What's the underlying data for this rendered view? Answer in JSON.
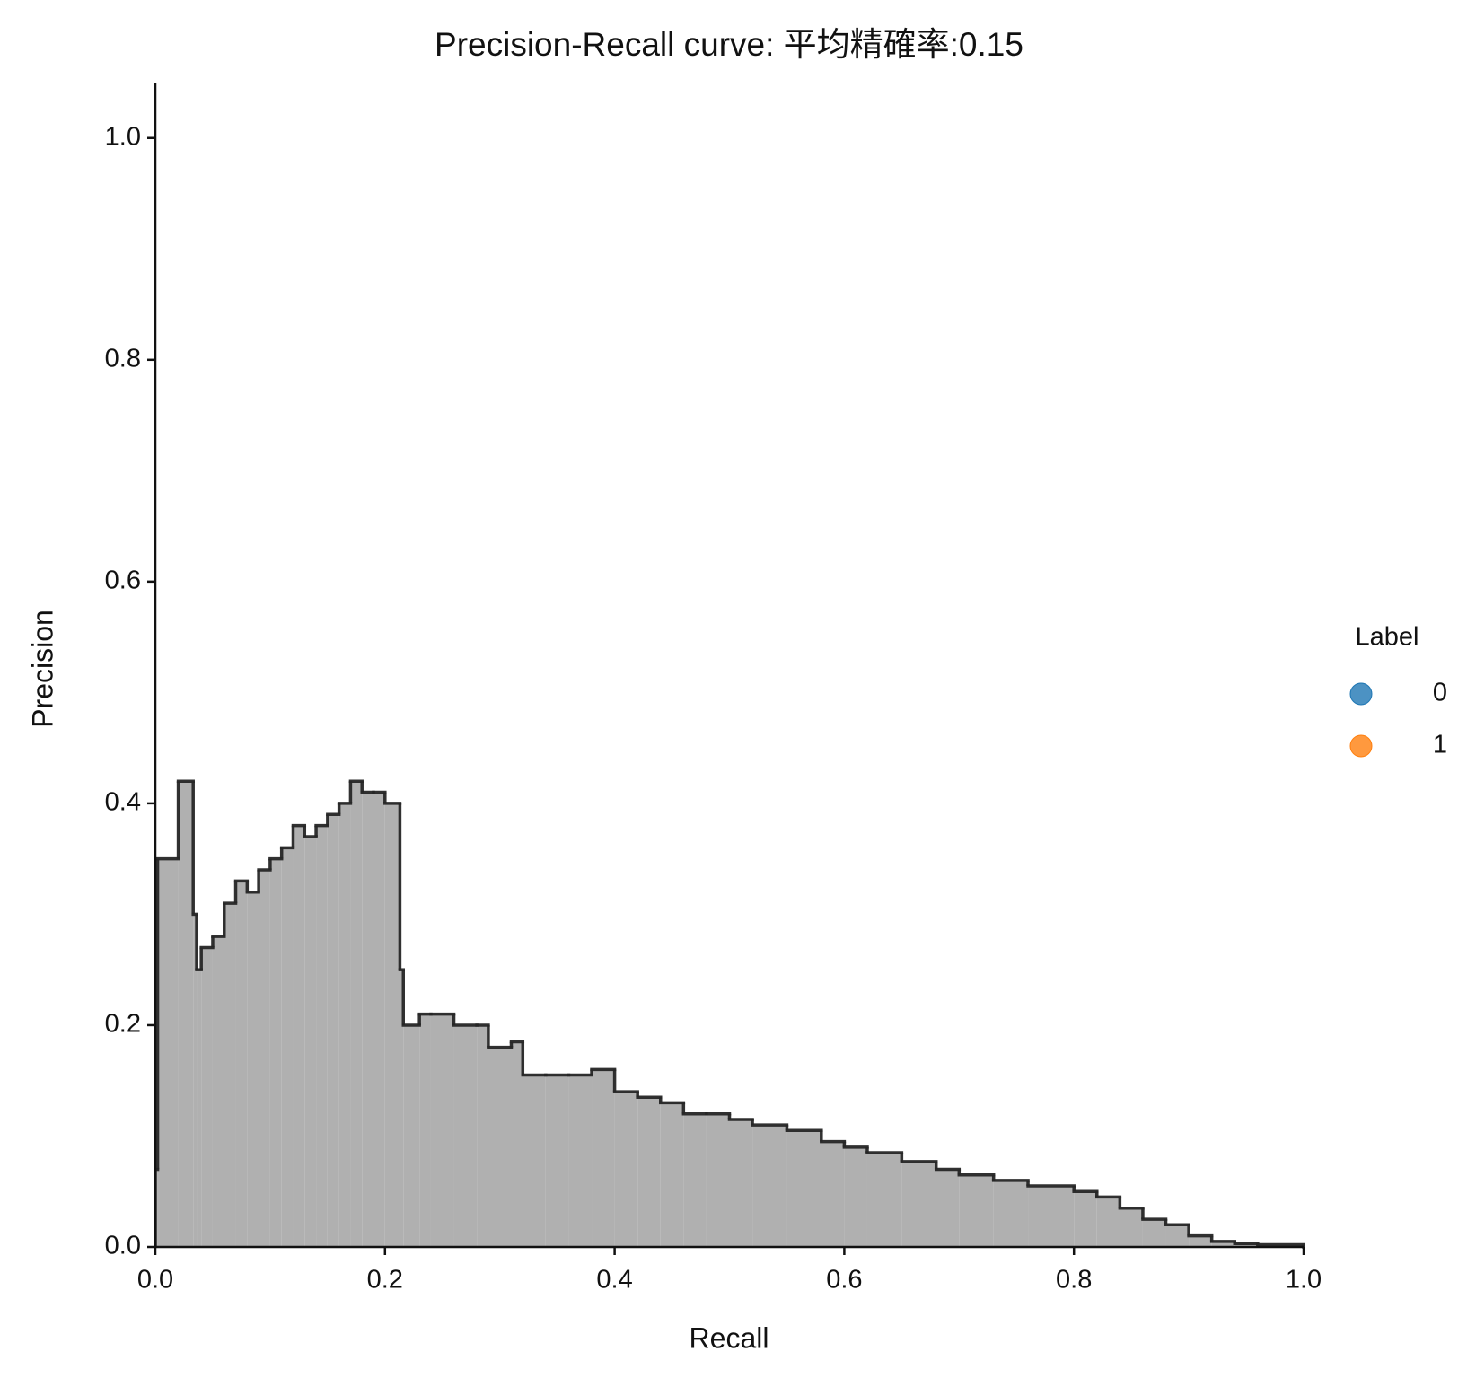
{
  "chart_data": {
    "type": "step-area",
    "title": "Precision-Recall curve: 平均精確率:0.15",
    "xlabel": "Recall",
    "ylabel": "Precision",
    "x": [
      0,
      0.002,
      0.02,
      0.033,
      0.036,
      0.04,
      0.05,
      0.06,
      0.07,
      0.08,
      0.09,
      0.1,
      0.11,
      0.12,
      0.13,
      0.14,
      0.15,
      0.16,
      0.17,
      0.18,
      0.19,
      0.2,
      0.213,
      0.216,
      0.23,
      0.24,
      0.26,
      0.28,
      0.29,
      0.31,
      0.32,
      0.34,
      0.36,
      0.38,
      0.4,
      0.42,
      0.44,
      0.46,
      0.48,
      0.5,
      0.52,
      0.55,
      0.58,
      0.6,
      0.62,
      0.65,
      0.68,
      0.7,
      0.73,
      0.76,
      0.8,
      0.82,
      0.84,
      0.86,
      0.88,
      0.9,
      0.92,
      0.94,
      0.96,
      1.0
    ],
    "values": [
      0.07,
      0.35,
      0.42,
      0.3,
      0.25,
      0.27,
      0.28,
      0.31,
      0.33,
      0.32,
      0.34,
      0.35,
      0.36,
      0.38,
      0.37,
      0.38,
      0.39,
      0.4,
      0.42,
      0.41,
      0.41,
      0.4,
      0.25,
      0.2,
      0.21,
      0.21,
      0.2,
      0.2,
      0.18,
      0.185,
      0.155,
      0.155,
      0.155,
      0.16,
      0.14,
      0.135,
      0.13,
      0.12,
      0.12,
      0.115,
      0.11,
      0.105,
      0.095,
      0.09,
      0.085,
      0.077,
      0.07,
      0.065,
      0.06,
      0.055,
      0.05,
      0.045,
      0.035,
      0.025,
      0.02,
      0.01,
      0.005,
      0.003,
      0.002,
      0
    ],
    "line_color": "#262626",
    "fill_color": "#b0b0b0",
    "xlim": [
      0,
      1
    ],
    "ylim": [
      0,
      1.05
    ],
    "xticks": [
      {
        "value": 0,
        "label": "0.0"
      },
      {
        "value": 0.2,
        "label": "0.2"
      },
      {
        "value": 0.4,
        "label": "0.4"
      },
      {
        "value": 0.6,
        "label": "0.6"
      },
      {
        "value": 0.8,
        "label": "0.8"
      },
      {
        "value": 1,
        "label": "1.0"
      }
    ],
    "yticks": [
      {
        "value": 0,
        "label": "0.0"
      },
      {
        "value": 0.2,
        "label": "0.2"
      },
      {
        "value": 0.4,
        "label": "0.4"
      },
      {
        "value": 0.6,
        "label": "0.6"
      },
      {
        "value": 0.8,
        "label": "0.8"
      },
      {
        "value": 1,
        "label": "1.0"
      }
    ],
    "grid": false,
    "legend": {
      "title": "Label",
      "position": "right",
      "items": [
        {
          "name": "0",
          "color": "#1f77b4"
        },
        {
          "name": "1",
          "color": "#ff7f0e"
        }
      ]
    }
  }
}
